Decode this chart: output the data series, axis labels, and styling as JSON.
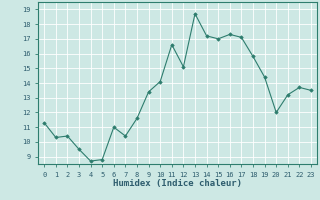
{
  "x": [
    0,
    1,
    2,
    3,
    4,
    5,
    6,
    7,
    8,
    9,
    10,
    11,
    12,
    13,
    14,
    15,
    16,
    17,
    18,
    19,
    20,
    21,
    22,
    23
  ],
  "y": [
    11.3,
    10.3,
    10.4,
    9.5,
    8.7,
    8.8,
    11.0,
    10.4,
    11.6,
    13.4,
    14.1,
    16.6,
    15.1,
    18.7,
    17.2,
    17.0,
    17.3,
    17.1,
    15.8,
    14.4,
    12.0,
    13.2,
    13.7,
    13.5
  ],
  "line_color": "#2e7d6e",
  "marker": "D",
  "markersize": 1.8,
  "linewidth": 0.8,
  "xlabel": "Humidex (Indice chaleur)",
  "xlim": [
    -0.5,
    23.5
  ],
  "ylim": [
    8.5,
    19.5
  ],
  "yticks": [
    9,
    10,
    11,
    12,
    13,
    14,
    15,
    16,
    17,
    18,
    19
  ],
  "xticks": [
    0,
    1,
    2,
    3,
    4,
    5,
    6,
    7,
    8,
    9,
    10,
    11,
    12,
    13,
    14,
    15,
    16,
    17,
    18,
    19,
    20,
    21,
    22,
    23
  ],
  "bg_color": "#cde8e4",
  "grid_color": "#b8d8d4",
  "tick_labelsize": 5.0,
  "xlabel_fontsize": 6.5,
  "tick_color": "#2e7d6e",
  "label_color": "#2e5d6e"
}
